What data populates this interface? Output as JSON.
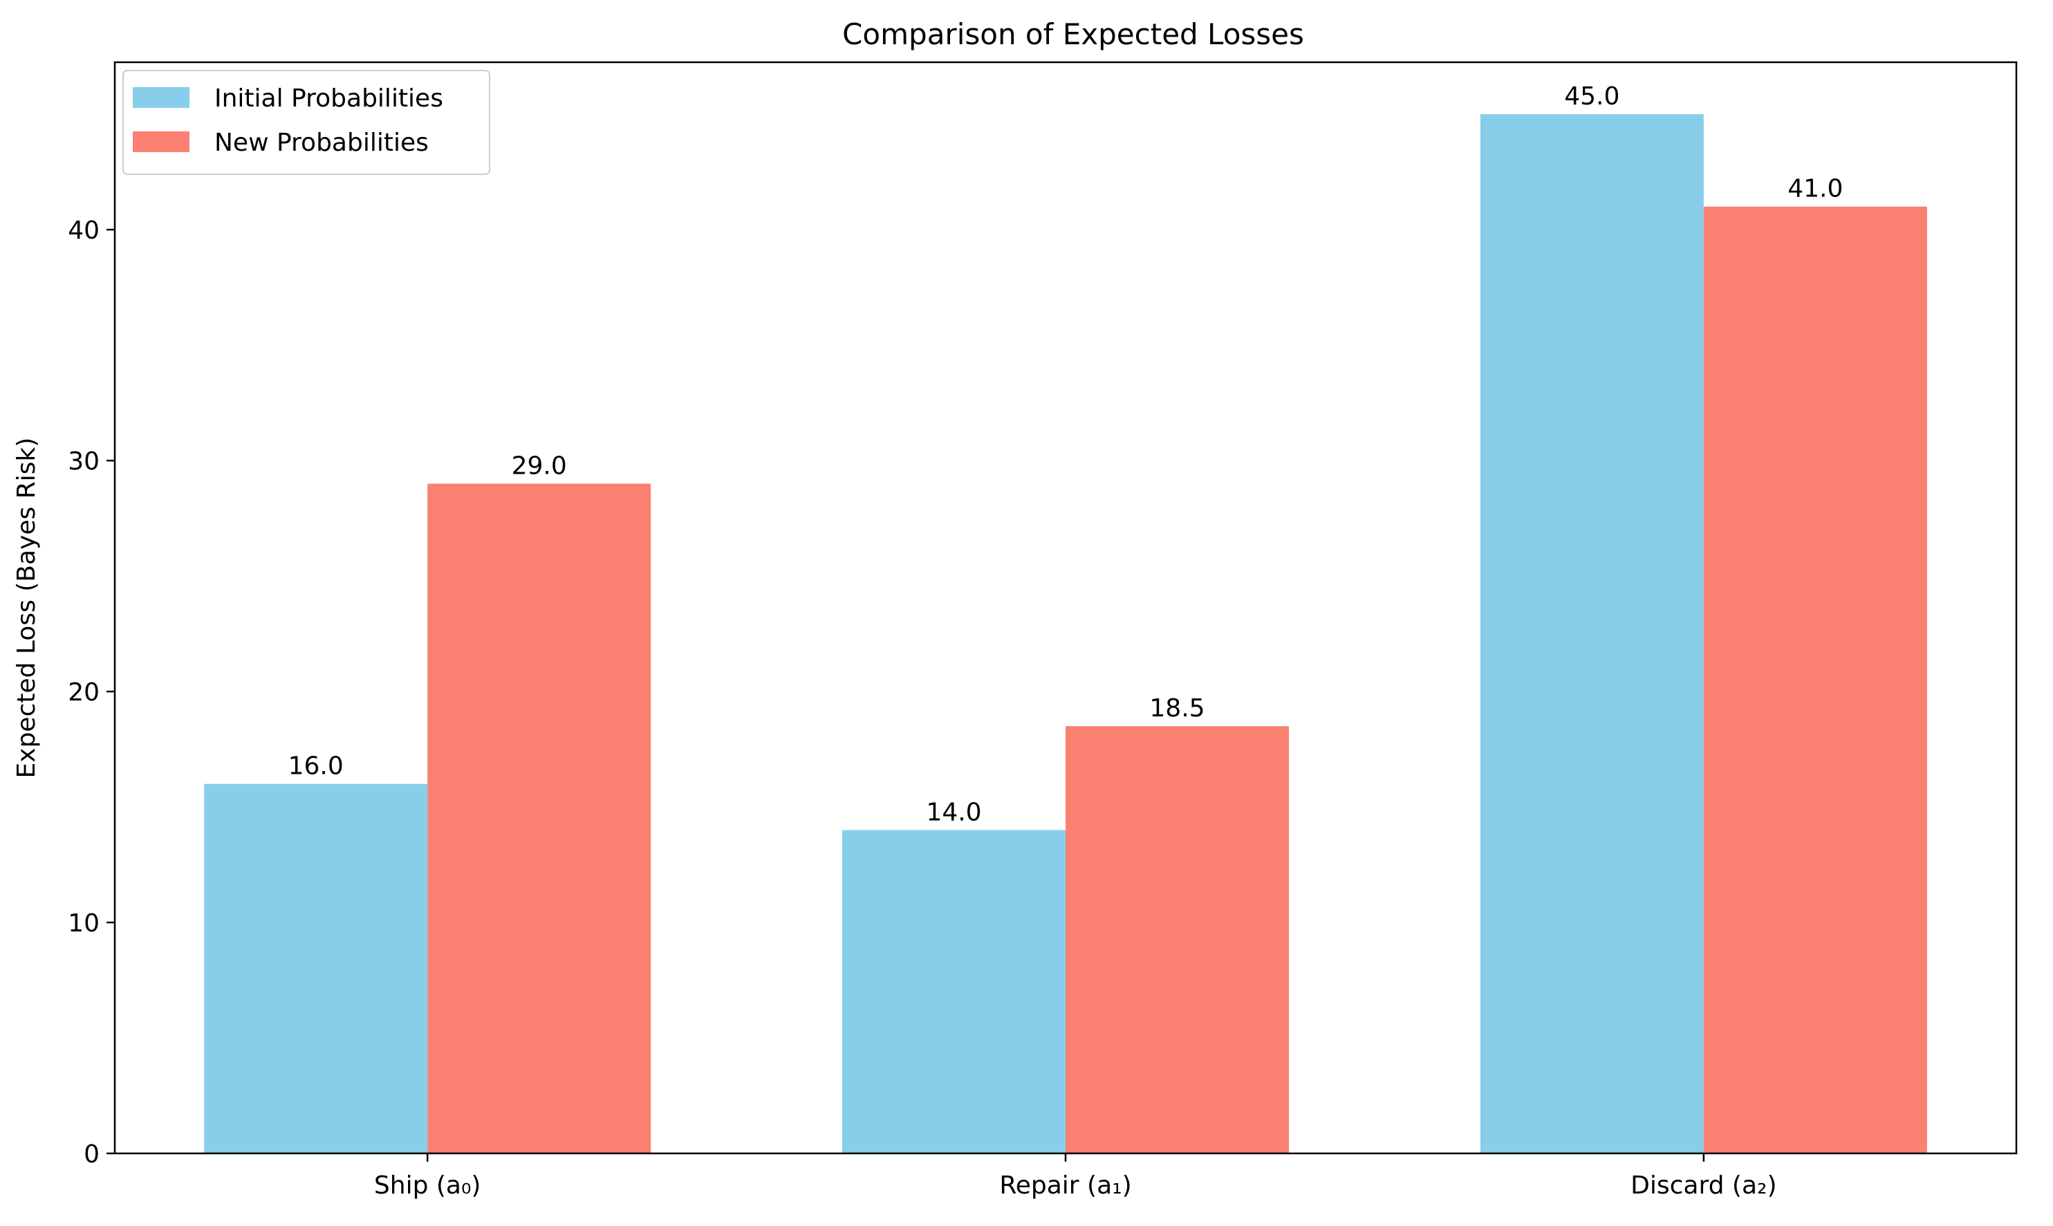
{
  "chart_data": {
    "type": "bar",
    "title": "Comparison of Expected Losses",
    "xlabel": "",
    "ylabel": "Expected Loss (Bayes Risk)",
    "categories": [
      "Ship (a₀)",
      "Repair (a₁)",
      "Discard (a₂)"
    ],
    "series": [
      {
        "name": "Initial Probabilities",
        "color": "#87CEEB",
        "values": [
          16.0,
          14.0,
          45.0
        ],
        "labels": [
          "16.0",
          "14.0",
          "45.0"
        ]
      },
      {
        "name": "New Probabilities",
        "color": "#FA8072",
        "values": [
          29.0,
          18.5,
          41.0
        ],
        "labels": [
          "29.0",
          "18.5",
          "41.0"
        ]
      }
    ],
    "ylim": [
      0,
      47.25
    ],
    "yticks": [
      0,
      10,
      20,
      30,
      40
    ],
    "ytick_labels": [
      "0",
      "10",
      "20",
      "30",
      "40"
    ],
    "grid": false,
    "legend_position": "upper-left"
  }
}
